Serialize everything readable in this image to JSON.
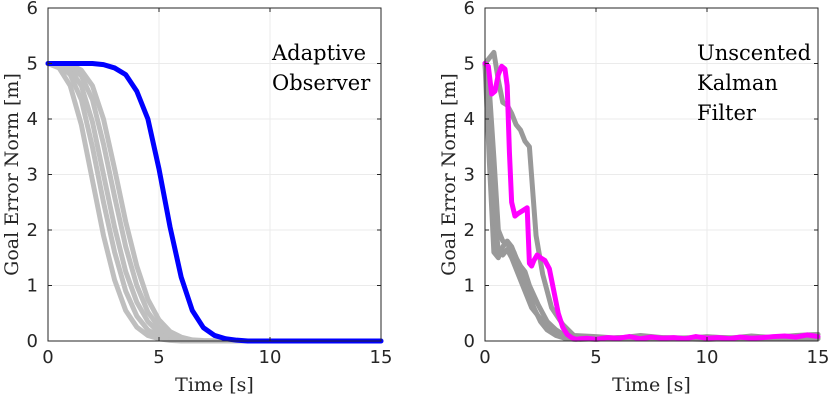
{
  "chart_data": [
    {
      "type": "line",
      "xlabel": "Time [s]",
      "ylabel": "Goal Error Norm [m]",
      "xlim": [
        0,
        15
      ],
      "ylim": [
        0,
        6
      ],
      "xticks": [
        0,
        5,
        10,
        15
      ],
      "yticks": [
        0,
        1,
        2,
        3,
        4,
        5,
        6
      ],
      "grid": true,
      "annotation": [
        "Adaptive",
        "Observer"
      ],
      "highlight_color": "#0000ff",
      "background_color": "#bfbfbf",
      "series": [
        {
          "name": "background-1",
          "role": "background",
          "x": [
            0,
            0.5,
            1,
            1.5,
            2,
            2.5,
            3,
            3.5,
            4,
            4.5,
            5,
            5.5,
            6,
            6.5,
            7,
            8,
            9,
            10,
            15
          ],
          "y": [
            5,
            4.92,
            4.6,
            3.9,
            2.9,
            1.9,
            1.1,
            0.55,
            0.25,
            0.1,
            0.04,
            0.01,
            0,
            0,
            0,
            0,
            0,
            0,
            0
          ]
        },
        {
          "name": "background-2",
          "role": "background",
          "x": [
            0,
            0.5,
            1,
            1.5,
            2,
            2.5,
            3,
            3.5,
            4,
            4.5,
            5,
            5.5,
            6,
            6.5,
            7,
            8,
            9,
            10,
            15
          ],
          "y": [
            5,
            4.97,
            4.8,
            4.35,
            3.5,
            2.5,
            1.6,
            0.9,
            0.45,
            0.2,
            0.08,
            0.03,
            0.01,
            0,
            0,
            0,
            0,
            0,
            0
          ]
        },
        {
          "name": "background-3",
          "role": "background",
          "x": [
            0,
            0.5,
            1,
            1.5,
            2,
            2.5,
            3,
            3.5,
            4,
            4.5,
            5,
            5.5,
            6,
            6.5,
            7,
            8,
            9,
            10,
            15
          ],
          "y": [
            5,
            4.99,
            4.9,
            4.6,
            3.95,
            3,
            2.05,
            1.25,
            0.7,
            0.35,
            0.15,
            0.06,
            0.02,
            0.01,
            0,
            0,
            0,
            0,
            0
          ]
        },
        {
          "name": "background-4",
          "role": "background",
          "x": [
            0,
            0.5,
            1,
            1.5,
            2,
            2.5,
            3,
            3.5,
            4,
            4.5,
            5,
            5.5,
            6,
            6.5,
            7,
            8,
            9,
            10,
            15
          ],
          "y": [
            5,
            5,
            4.95,
            4.78,
            4.35,
            3.55,
            2.6,
            1.7,
            1,
            0.52,
            0.25,
            0.1,
            0.04,
            0.01,
            0,
            0,
            0,
            0,
            0
          ]
        },
        {
          "name": "background-5",
          "role": "background",
          "x": [
            0,
            0.5,
            1,
            1.5,
            2,
            2.5,
            3,
            3.5,
            4,
            4.5,
            5,
            5.5,
            6,
            6.5,
            7,
            8,
            9,
            10,
            15
          ],
          "y": [
            5,
            5,
            4.98,
            4.88,
            4.6,
            4,
            3.1,
            2.15,
            1.35,
            0.75,
            0.38,
            0.17,
            0.07,
            0.02,
            0.01,
            0,
            0,
            0,
            0
          ]
        },
        {
          "name": "adaptive-observer",
          "role": "highlight",
          "x": [
            0,
            1,
            2,
            2.5,
            3,
            3.5,
            4,
            4.5,
            5,
            5.5,
            6,
            6.5,
            7,
            7.5,
            8,
            8.5,
            9,
            10,
            15
          ],
          "y": [
            5,
            5,
            5,
            4.98,
            4.92,
            4.8,
            4.5,
            4,
            3.1,
            2.05,
            1.15,
            0.55,
            0.24,
            0.1,
            0.04,
            0.015,
            0,
            0,
            0
          ]
        }
      ]
    },
    {
      "type": "line",
      "xlabel": "Time [s]",
      "ylabel": "Goal Error Norm [m]",
      "xlim": [
        0,
        15
      ],
      "ylim": [
        0,
        6
      ],
      "xticks": [
        0,
        5,
        10,
        15
      ],
      "yticks": [
        0,
        1,
        2,
        3,
        4,
        5,
        6
      ],
      "grid": true,
      "annotation": [
        "Unscented",
        "Kalman",
        "Filter"
      ],
      "highlight_color": "#ff00ff",
      "background_color": "#999999",
      "series": [
        {
          "name": "background-1",
          "role": "background",
          "x": [
            0,
            0.2,
            0.4,
            0.6,
            0.8,
            1,
            1.2,
            1.4,
            1.6,
            1.8,
            2,
            2.3,
            2.6,
            3,
            3.5,
            4,
            5,
            6,
            7,
            8,
            9,
            10,
            11,
            12,
            13,
            14,
            15
          ],
          "y": [
            5,
            5.1,
            5.2,
            4.7,
            4.3,
            4.25,
            4.1,
            3.9,
            3.8,
            3.6,
            3.5,
            1.9,
            1.2,
            0.6,
            0.3,
            0.1,
            0.08,
            0.05,
            0.1,
            0.06,
            0.04,
            0.08,
            0.05,
            0.09,
            0.06,
            0.1,
            0.12
          ]
        },
        {
          "name": "background-2",
          "role": "background",
          "x": [
            0,
            0.2,
            0.4,
            0.6,
            0.8,
            1,
            1.2,
            1.4,
            1.6,
            1.8,
            2,
            2.4,
            2.8,
            3.2,
            3.6,
            4,
            5,
            6,
            8,
            10,
            12,
            14,
            15
          ],
          "y": [
            5,
            3.2,
            1.6,
            1.5,
            1.7,
            1.8,
            1.7,
            1.5,
            1.35,
            1.25,
            1,
            0.65,
            0.35,
            0.2,
            0.1,
            0.05,
            0.03,
            0.06,
            0.04,
            0.07,
            0.05,
            0.08,
            0.06
          ]
        },
        {
          "name": "background-3",
          "role": "background",
          "x": [
            0,
            0.2,
            0.4,
            0.6,
            0.8,
            1,
            1.2,
            1.5,
            1.8,
            2.1,
            2.5,
            2.9,
            3.3,
            3.8,
            4.3,
            5,
            6,
            8,
            10,
            12,
            14,
            15
          ],
          "y": [
            5,
            4,
            2.5,
            1.6,
            1.55,
            1.65,
            1.5,
            1.2,
            0.9,
            0.6,
            0.4,
            0.2,
            0.1,
            0.05,
            0.03,
            0.04,
            0.06,
            0.05,
            0.03,
            0.06,
            0.05,
            0.04
          ]
        },
        {
          "name": "background-4",
          "role": "background",
          "x": [
            0,
            0.2,
            0.4,
            0.6,
            0.8,
            1,
            1.3,
            1.6,
            1.9,
            2.2,
            2.5,
            2.8,
            3.2,
            3.6,
            4,
            5,
            6,
            8,
            10,
            12,
            14,
            15
          ],
          "y": [
            5,
            4.5,
            3.3,
            2,
            1.8,
            1.75,
            1.6,
            1.3,
            0.95,
            0.6,
            0.35,
            0.2,
            0.1,
            0.05,
            0.03,
            0.05,
            0.04,
            0.06,
            0.05,
            0.04,
            0.07,
            0.05
          ]
        },
        {
          "name": "unscented-kalman-filter",
          "role": "highlight",
          "x": [
            0,
            0.15,
            0.3,
            0.45,
            0.6,
            0.75,
            0.9,
            1,
            1.1,
            1.2,
            1.35,
            1.5,
            1.7,
            1.9,
            2,
            2.1,
            2.2,
            2.35,
            2.5,
            2.7,
            2.9,
            3.1,
            3.3,
            3.5,
            3.7,
            3.9,
            4.1,
            4.3,
            4.6,
            5,
            5.5,
            6,
            6.5,
            7,
            7.5,
            8,
            8.5,
            9,
            9.5,
            10,
            10.5,
            11,
            11.5,
            12,
            12.5,
            13,
            13.5,
            14,
            14.5,
            15
          ],
          "y": [
            5,
            4.95,
            4.45,
            4.5,
            4.8,
            4.95,
            4.9,
            4.6,
            3.4,
            2.5,
            2.25,
            2.3,
            2.35,
            2.4,
            1.4,
            1.35,
            1.45,
            1.55,
            1.5,
            1.45,
            1.3,
            0.9,
            0.5,
            0.25,
            0.12,
            0.06,
            0.03,
            0.04,
            0.05,
            0.03,
            0.06,
            0.05,
            0.08,
            0.04,
            0.07,
            0.05,
            0.06,
            0.04,
            0.08,
            0.05,
            0.06,
            0.04,
            0.07,
            0.05,
            0.06,
            0.08,
            0.09,
            0.07,
            0.11,
            0.08
          ]
        }
      ]
    }
  ]
}
